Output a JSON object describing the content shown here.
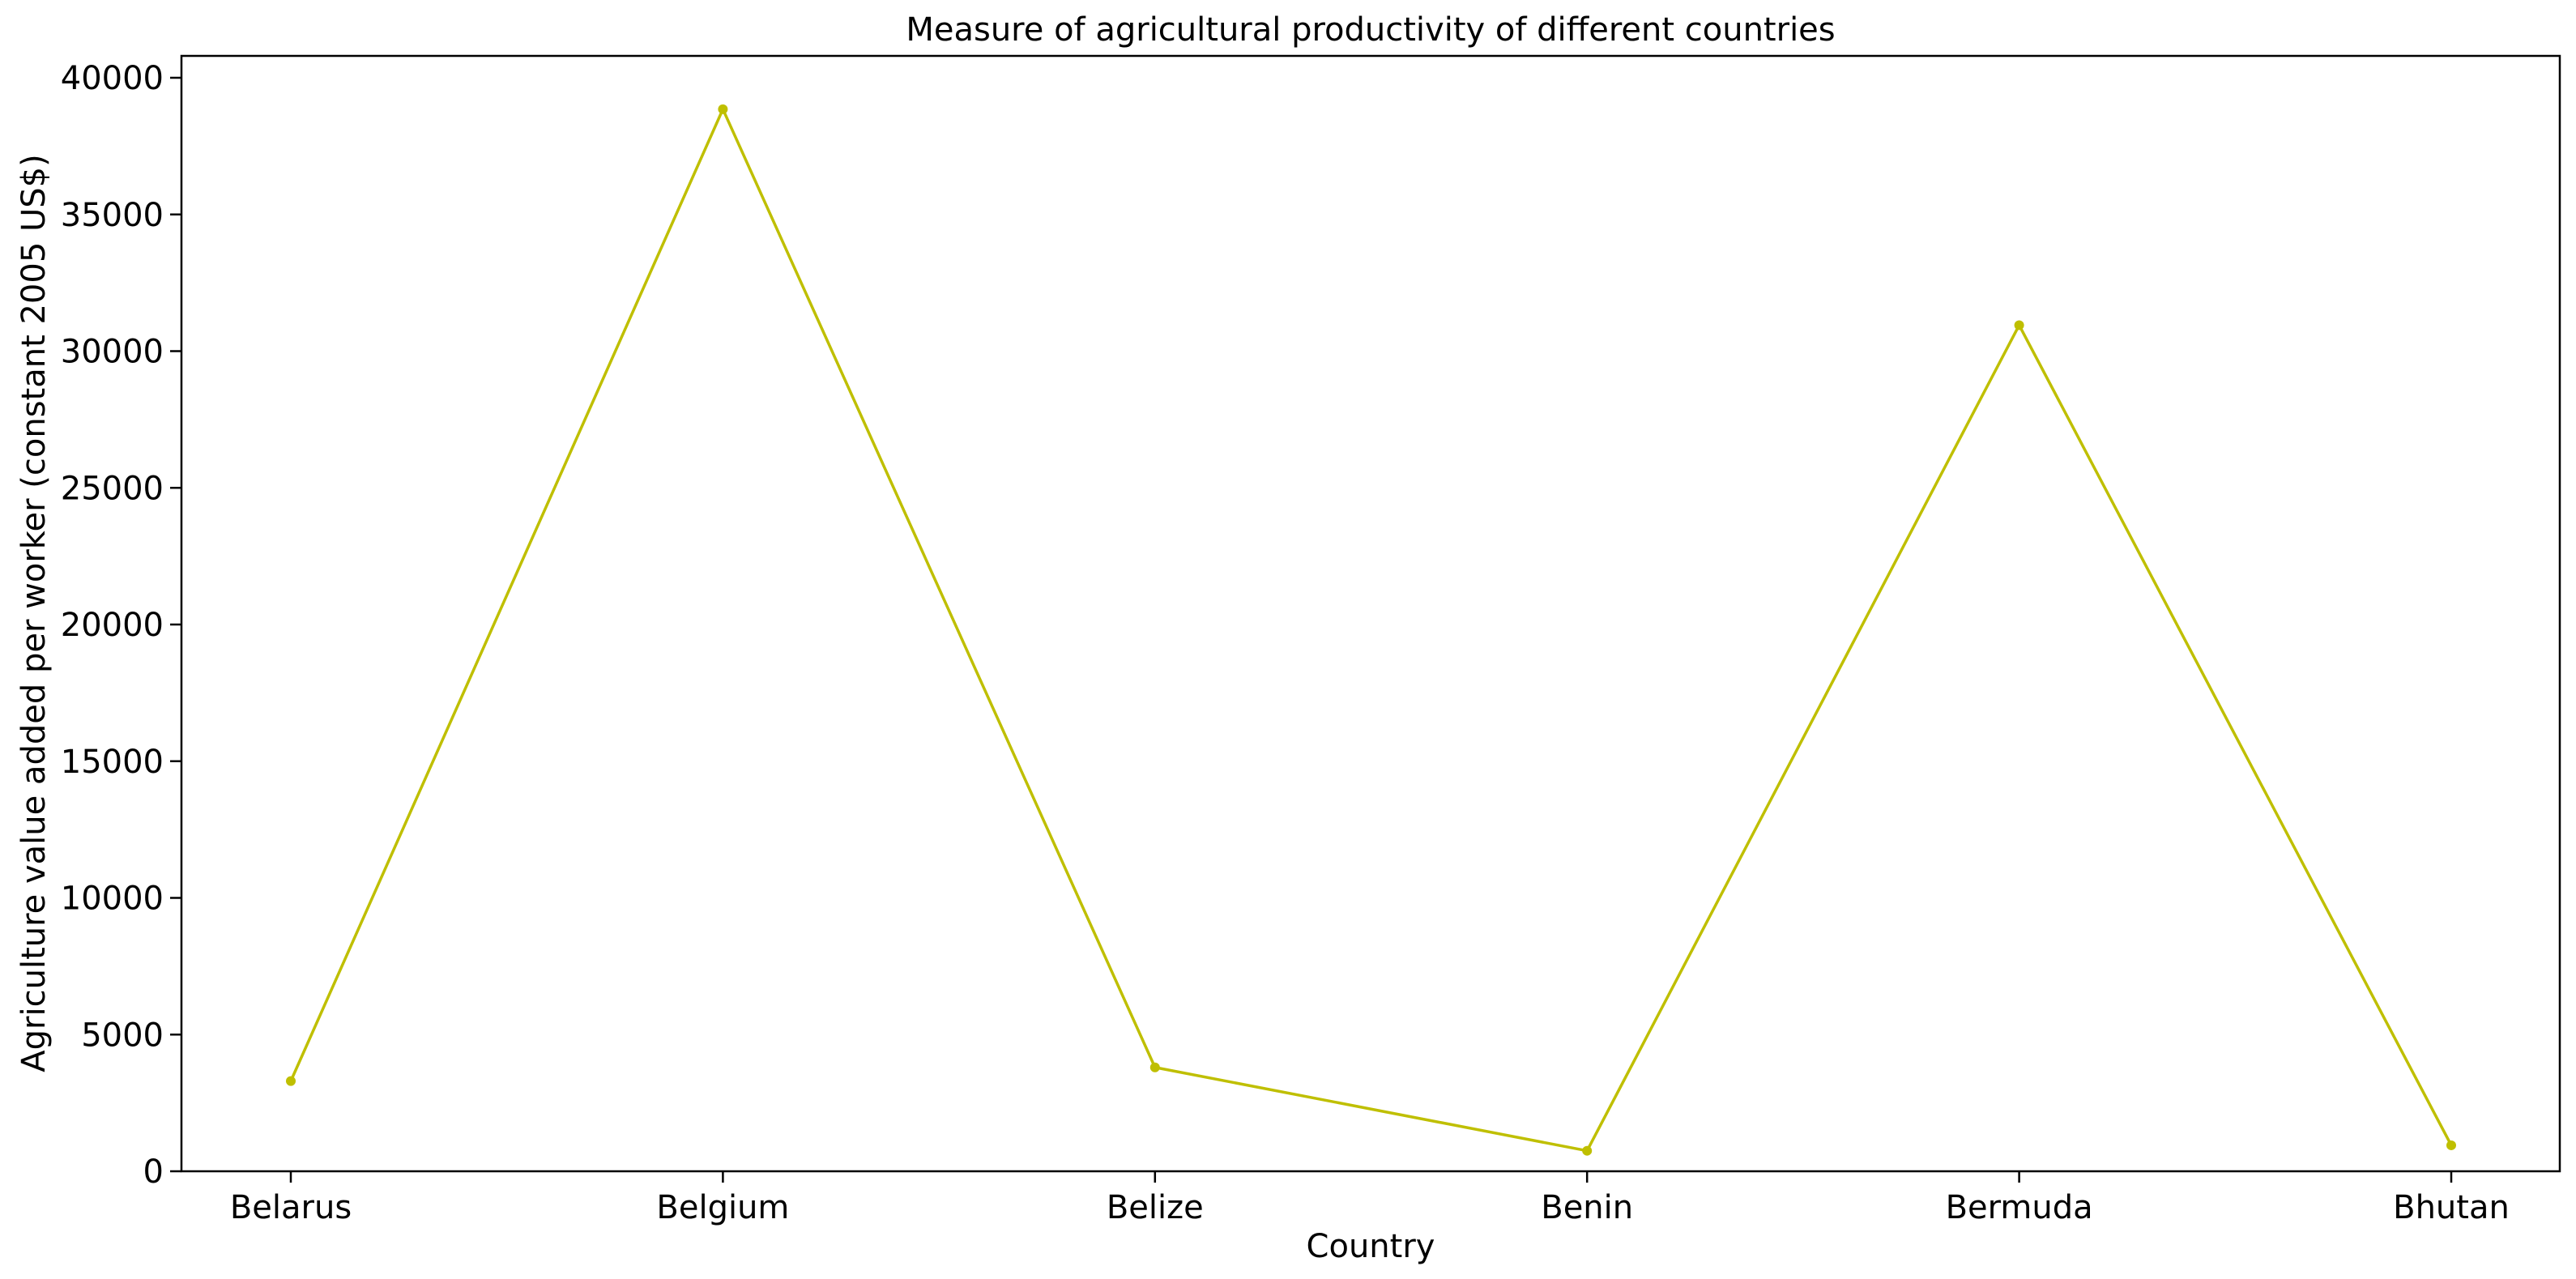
{
  "chart_data": {
    "type": "line",
    "title": "Measure of agricultural productivity of different countries",
    "xlabel": "Country",
    "ylabel": "Agriculture value added per worker (constant 2005 US$)",
    "categories": [
      "Belarus",
      "Belgium",
      "Belize",
      "Benin",
      "Bermuda",
      "Bhutan"
    ],
    "series": [
      {
        "values": [
          3300,
          38850,
          3800,
          750,
          30950,
          950
        ]
      }
    ],
    "ylim": [
      0,
      40800
    ],
    "yticks": [
      0,
      5000,
      10000,
      15000,
      20000,
      25000,
      30000,
      35000,
      40000
    ],
    "ytick_labels": [
      "0",
      "5000",
      "10000",
      "15000",
      "20000",
      "25000",
      "30000",
      "35000",
      "40000"
    ],
    "grid": false,
    "line_color": "#bfbf00"
  }
}
